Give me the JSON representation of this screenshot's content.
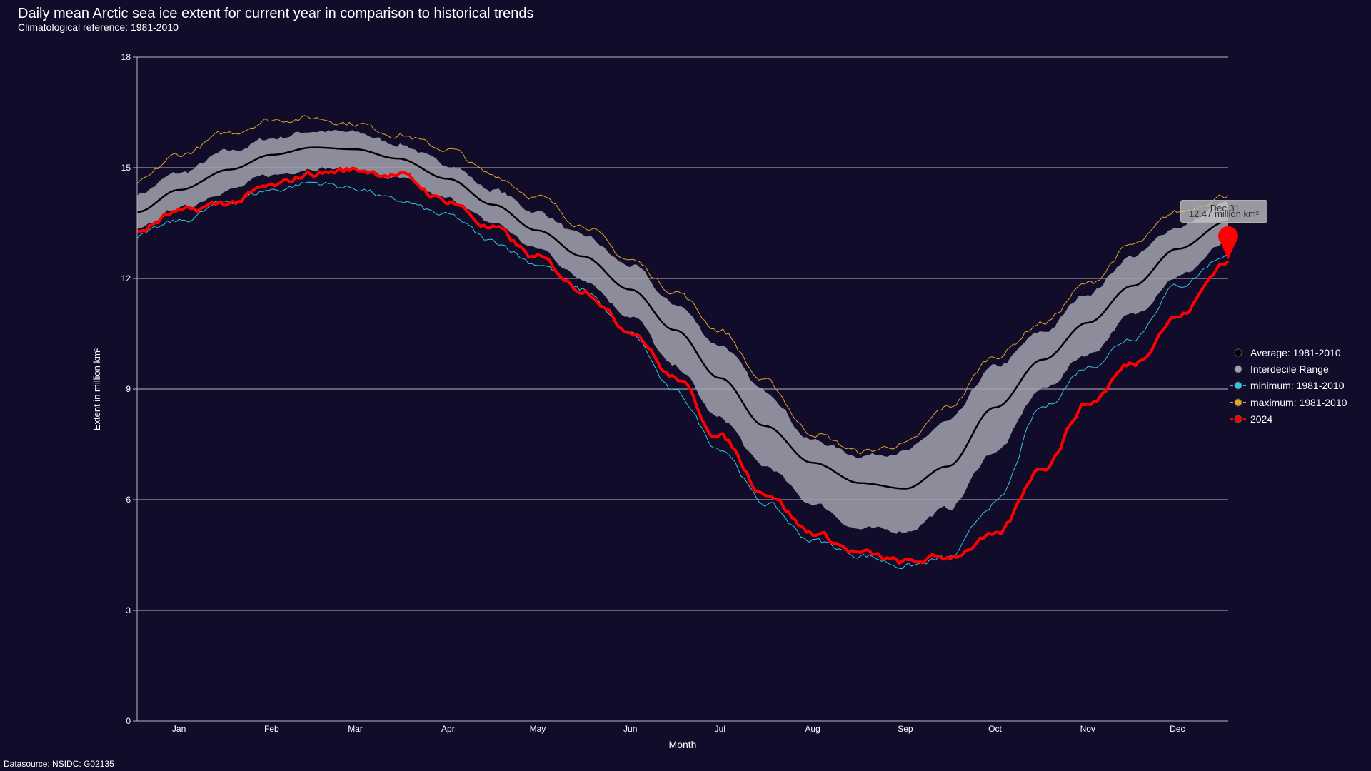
{
  "header": {
    "title": "Daily mean Arctic sea ice extent for current year in comparison to historical trends",
    "subtitle": "Climatological reference: 1981-2010"
  },
  "footer": {
    "source": "Datasource: NSIDC: G02135"
  },
  "tooltip": {
    "date": "Dec 31",
    "value": "12.47 million km²"
  },
  "colors": {
    "background": "#100c2a",
    "grid": "#b9b9c4",
    "average": "#000000",
    "band": "#a3a3ae",
    "minimum": "#35c6e0",
    "maximum": "#e6a322",
    "current": "#ff0000"
  },
  "legend": [
    {
      "key": "average",
      "label": "Average: 1981-2010",
      "color": "#000000",
      "style": "dot"
    },
    {
      "key": "band",
      "label": "Interdecile Range",
      "color": "#a3a3ae",
      "style": "dot"
    },
    {
      "key": "minimum",
      "label": "minimum: 1981-2010",
      "color": "#35c6e0",
      "style": "line"
    },
    {
      "key": "maximum",
      "label": "maximum: 1981-2010",
      "color": "#e6a322",
      "style": "line"
    },
    {
      "key": "current",
      "label": "2024",
      "color": "#ff0000",
      "style": "line"
    }
  ],
  "chart_data": {
    "type": "line",
    "title": "Daily mean Arctic sea ice extent for current year in comparison to historical trends",
    "subtitle": "Climatological reference: 1981-2010",
    "xlabel": "Month",
    "ylabel": "Extent in million km²",
    "ylim": [
      0,
      18
    ],
    "yticks": [
      "0",
      "3",
      "6",
      "9",
      "12",
      "15",
      "18"
    ],
    "xlim": [
      1,
      366
    ],
    "month_labels": [
      "Jan",
      "Feb",
      "Mar",
      "Apr",
      "May",
      "Jun",
      "Jul",
      "Aug",
      "Sep",
      "Oct",
      "Nov",
      "Dec"
    ],
    "month_days": [
      15,
      46,
      74,
      105,
      135,
      166,
      196,
      227,
      258,
      288,
      319,
      349
    ],
    "grid": true,
    "legend_position": "right",
    "x": [
      1,
      15,
      32,
      46,
      60,
      74,
      88,
      105,
      120,
      135,
      150,
      166,
      181,
      196,
      211,
      227,
      243,
      258,
      272,
      288,
      304,
      319,
      334,
      349,
      366
    ],
    "series": [
      {
        "name": "Average: 1981-2010",
        "values": [
          13.8,
          14.4,
          14.95,
          15.35,
          15.55,
          15.5,
          15.25,
          14.7,
          14.0,
          13.3,
          12.6,
          11.7,
          10.6,
          9.3,
          8.0,
          7.0,
          6.45,
          6.3,
          6.9,
          8.5,
          9.8,
          10.8,
          11.8,
          12.8,
          13.55
        ]
      },
      {
        "name": "Interdecile Range (upper)",
        "values": [
          14.3,
          14.85,
          15.45,
          15.8,
          16.0,
          15.95,
          15.65,
          15.1,
          14.4,
          13.8,
          13.15,
          12.35,
          11.3,
          10.2,
          8.95,
          7.6,
          7.2,
          7.3,
          8.1,
          9.6,
          10.55,
          11.6,
          12.6,
          13.4,
          14.05
        ]
      },
      {
        "name": "Interdecile Range (lower)",
        "values": [
          13.3,
          13.9,
          14.4,
          14.8,
          15.0,
          14.95,
          14.7,
          14.15,
          13.5,
          12.8,
          12.0,
          11.0,
          9.6,
          8.2,
          6.9,
          5.9,
          5.2,
          5.15,
          5.75,
          7.3,
          9.0,
          9.95,
          11.0,
          12.05,
          12.95
        ]
      },
      {
        "name": "minimum: 1981-2010",
        "values": [
          13.15,
          13.55,
          14.1,
          14.4,
          14.6,
          14.45,
          14.1,
          13.7,
          13.0,
          12.4,
          11.7,
          10.5,
          8.9,
          7.4,
          5.9,
          4.9,
          4.5,
          4.2,
          4.4,
          5.9,
          8.5,
          9.6,
          10.4,
          11.8,
          12.65
        ]
      },
      {
        "name": "maximum: 1981-2010",
        "values": [
          14.6,
          15.35,
          15.95,
          16.3,
          16.35,
          16.2,
          15.9,
          15.5,
          14.8,
          14.2,
          13.45,
          12.5,
          11.65,
          10.6,
          9.2,
          7.8,
          7.3,
          7.5,
          8.5,
          9.9,
          10.8,
          11.85,
          12.9,
          13.8,
          14.25
        ]
      },
      {
        "name": "2024",
        "values": [
          13.3,
          13.8,
          14.05,
          14.5,
          14.85,
          14.95,
          14.8,
          14.1,
          13.35,
          12.55,
          11.7,
          10.6,
          9.3,
          7.7,
          6.2,
          5.1,
          4.55,
          4.3,
          4.45,
          5.0,
          6.9,
          8.6,
          9.7,
          10.95,
          12.47
        ]
      }
    ],
    "annotation": {
      "label": "Dec 31",
      "value": "12.47 million km²"
    }
  }
}
